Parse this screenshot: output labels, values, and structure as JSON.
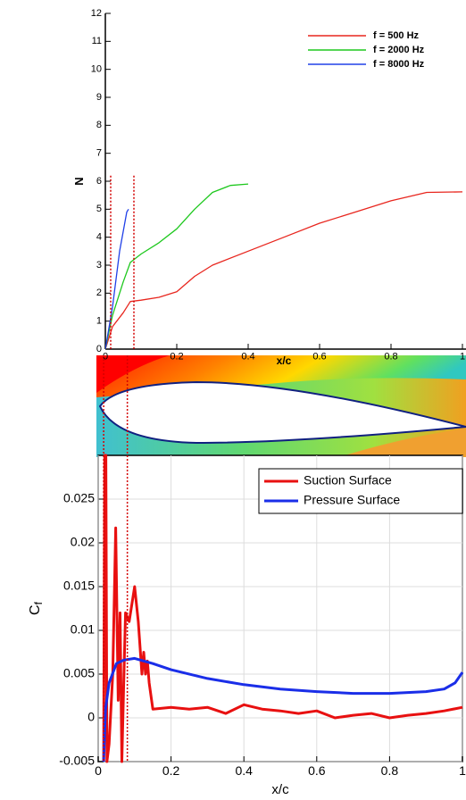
{
  "chart_data": [
    {
      "type": "line",
      "xlabel": "x/c",
      "ylabel": "N",
      "xlim": [
        0,
        1
      ],
      "xticks": [
        0,
        0.2,
        0.4,
        0.6,
        0.8,
        1
      ],
      "ylim": [
        0,
        12
      ],
      "yticks": [
        0,
        1,
        2,
        3,
        4,
        5,
        6,
        7,
        8,
        9,
        10,
        11,
        12
      ],
      "grid": false,
      "legend": "upper right",
      "vlines": [
        0.015,
        0.08
      ],
      "vline_color": "#d40000",
      "series": [
        {
          "name": "f = 500 Hz",
          "color": "#e8261e",
          "x": [
            0,
            0.02,
            0.05,
            0.07,
            0.1,
            0.15,
            0.2,
            0.25,
            0.3,
            0.4,
            0.5,
            0.6,
            0.7,
            0.8,
            0.9,
            1
          ],
          "values": [
            0,
            0.8,
            1.3,
            1.7,
            1.75,
            1.85,
            2.05,
            2.6,
            3.0,
            3.5,
            4.0,
            4.5,
            4.9,
            5.3,
            5.6,
            5.62
          ]
        },
        {
          "name": "f = 2000 Hz",
          "color": "#1ec81e",
          "x": [
            0,
            0.02,
            0.05,
            0.07,
            0.1,
            0.15,
            0.2,
            0.25,
            0.3,
            0.35,
            0.4
          ],
          "values": [
            0,
            1.2,
            2.4,
            3.1,
            3.4,
            3.8,
            4.3,
            5.0,
            5.6,
            5.85,
            5.9
          ]
        },
        {
          "name": "f = 8000 Hz",
          "color": "#2040e8",
          "x": [
            0,
            0.02,
            0.04,
            0.06,
            0.065
          ],
          "values": [
            0,
            1.5,
            3.5,
            4.9,
            5.0
          ]
        }
      ]
    },
    {
      "type": "line",
      "xlabel": "x/c",
      "ylabel": "C",
      "ylabel_sub": "f",
      "xlim": [
        0,
        1
      ],
      "xticks": [
        0,
        0.2,
        0.4,
        0.6,
        0.8,
        1
      ],
      "ylim": [
        -0.005,
        0.03
      ],
      "yticks": [
        -0.005,
        0,
        0.005,
        0.01,
        0.015,
        0.02,
        0.025
      ],
      "grid": true,
      "legend": "upper right",
      "vlines": [
        0.015,
        0.08
      ],
      "vline_color": "#d40000",
      "series": [
        {
          "name": "Suction Surface",
          "color": "#e81010",
          "x": [
            0.015,
            0.018,
            0.021,
            0.024,
            0.03,
            0.04,
            0.048,
            0.055,
            0.06,
            0.065,
            0.07,
            0.075,
            0.085,
            0.1,
            0.11,
            0.12,
            0.125,
            0.13,
            0.135,
            0.14,
            0.15,
            0.2,
            0.25,
            0.3,
            0.35,
            0.4,
            0.45,
            0.5,
            0.55,
            0.6,
            0.65,
            0.7,
            0.75,
            0.8,
            0.85,
            0.9,
            0.95,
            1
          ],
          "values": [
            -0.005,
            0.03,
            0.03,
            -0.005,
            -0.003,
            0.005,
            0.0217,
            0.002,
            0.012,
            -0.005,
            0.004,
            0.012,
            0.011,
            0.015,
            0.011,
            0.005,
            0.0075,
            0.005,
            0.0065,
            0.004,
            0.001,
            0.0012,
            0.001,
            0.0012,
            0.0005,
            0.0015,
            0.001,
            0.0008,
            0.0005,
            0.0008,
            0,
            0.0003,
            0.0005,
            0,
            0.0003,
            0.0005,
            0.0008,
            0.0012
          ]
        },
        {
          "name": "Pressure Surface",
          "color": "#1a2ee8",
          "x": [
            0.015,
            0.02,
            0.03,
            0.05,
            0.07,
            0.1,
            0.15,
            0.2,
            0.3,
            0.4,
            0.5,
            0.6,
            0.7,
            0.8,
            0.9,
            0.95,
            0.98,
            1
          ],
          "values": [
            -0.005,
            0.001,
            0.004,
            0.0062,
            0.0066,
            0.0068,
            0.0062,
            0.0055,
            0.0045,
            0.0038,
            0.0033,
            0.003,
            0.0028,
            0.0028,
            0.003,
            0.0033,
            0.004,
            0.0052
          ]
        }
      ]
    }
  ]
}
